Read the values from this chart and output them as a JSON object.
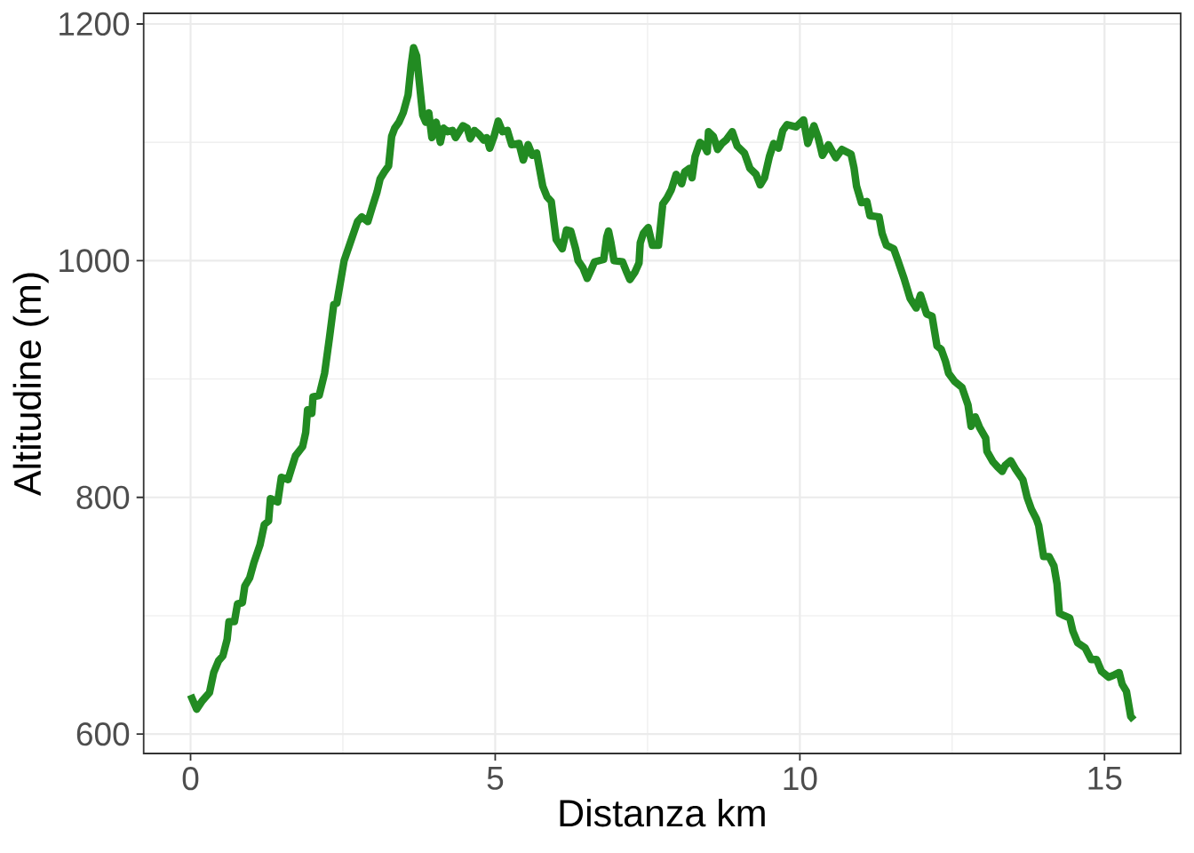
{
  "chart_data": {
    "type": "line",
    "xlabel": "Distanza km",
    "ylabel": "Altitudine (m)",
    "x": [
      0.0,
      0.1,
      0.19,
      0.31,
      0.38,
      0.46,
      0.53,
      0.6,
      0.63,
      0.72,
      0.77,
      0.85,
      0.89,
      0.97,
      1.04,
      1.14,
      1.21,
      1.28,
      1.31,
      1.43,
      1.49,
      1.6,
      1.72,
      1.84,
      1.89,
      1.92,
      1.99,
      2.01,
      2.11,
      2.2,
      2.28,
      2.35,
      2.4,
      2.52,
      2.62,
      2.74,
      2.81,
      2.91,
      2.98,
      3.06,
      3.11,
      3.18,
      3.25,
      3.3,
      3.35,
      3.42,
      3.49,
      3.57,
      3.62,
      3.66,
      3.71,
      3.76,
      3.81,
      3.86,
      3.91,
      3.96,
      4.03,
      4.1,
      4.15,
      4.22,
      4.3,
      4.35,
      4.47,
      4.54,
      4.59,
      4.66,
      4.73,
      4.81,
      4.86,
      4.91,
      4.98,
      5.05,
      5.12,
      5.2,
      5.27,
      5.39,
      5.46,
      5.54,
      5.61,
      5.68,
      5.78,
      5.85,
      5.92,
      6.0,
      6.1,
      6.17,
      6.24,
      6.32,
      6.36,
      6.44,
      6.51,
      6.58,
      6.63,
      6.78,
      6.83,
      6.86,
      6.9,
      6.95,
      7.09,
      7.16,
      7.21,
      7.29,
      7.36,
      7.38,
      7.43,
      7.51,
      7.58,
      7.68,
      7.75,
      7.82,
      7.89,
      7.97,
      8.06,
      8.11,
      8.19,
      8.23,
      8.28,
      8.36,
      8.43,
      8.48,
      8.5,
      8.58,
      8.65,
      8.72,
      8.79,
      8.89,
      8.97,
      9.09,
      9.18,
      9.28,
      9.35,
      9.42,
      9.5,
      9.57,
      9.65,
      9.72,
      9.79,
      9.94,
      10.06,
      10.13,
      10.23,
      10.3,
      10.37,
      10.47,
      10.59,
      10.69,
      10.84,
      10.89,
      10.93,
      11.01,
      11.1,
      11.15,
      11.3,
      11.35,
      11.42,
      11.54,
      11.61,
      11.71,
      11.81,
      11.91,
      11.98,
      12.08,
      12.17,
      12.25,
      12.32,
      12.39,
      12.44,
      12.54,
      12.66,
      12.76,
      12.81,
      12.88,
      12.95,
      13.05,
      13.07,
      13.17,
      13.24,
      13.32,
      13.37,
      13.46,
      13.54,
      13.66,
      13.73,
      13.8,
      13.88,
      13.92,
      14.0,
      14.09,
      14.17,
      14.22,
      14.26,
      14.34,
      14.43,
      14.48,
      14.56,
      14.68,
      14.78,
      14.87,
      14.95,
      15.07,
      15.16,
      15.24,
      15.29,
      15.36,
      15.43,
      15.48
    ],
    "values": [
      633,
      621,
      628,
      635,
      652,
      662,
      666,
      680,
      695,
      695,
      710,
      711,
      725,
      732,
      745,
      760,
      777,
      780,
      799,
      796,
      817,
      815,
      835,
      843,
      855,
      874,
      871,
      885,
      886,
      905,
      935,
      963,
      964,
      1000,
      1015,
      1033,
      1037,
      1033,
      1045,
      1058,
      1069,
      1075,
      1080,
      1105,
      1112,
      1117,
      1125,
      1140,
      1165,
      1180,
      1173,
      1148,
      1123,
      1117,
      1125,
      1104,
      1117,
      1100,
      1112,
      1109,
      1110,
      1104,
      1114,
      1112,
      1103,
      1110,
      1107,
      1102,
      1104,
      1095,
      1105,
      1118,
      1109,
      1110,
      1098,
      1099,
      1085,
      1098,
      1089,
      1091,
      1063,
      1054,
      1050,
      1018,
      1010,
      1026,
      1025,
      1010,
      1000,
      994,
      985,
      993,
      999,
      1001,
      1020,
      1025,
      1015,
      1000,
      999,
      990,
      984,
      990,
      998,
      1015,
      1023,
      1028,
      1013,
      1013,
      1048,
      1053,
      1060,
      1073,
      1065,
      1075,
      1078,
      1070,
      1088,
      1100,
      1097,
      1092,
      1109,
      1105,
      1094,
      1099,
      1102,
      1109,
      1097,
      1091,
      1078,
      1073,
      1064,
      1070,
      1088,
      1099,
      1095,
      1110,
      1115,
      1113,
      1119,
      1099,
      1114,
      1104,
      1089,
      1098,
      1087,
      1094,
      1090,
      1078,
      1063,
      1049,
      1050,
      1038,
      1037,
      1023,
      1013,
      1010,
      1000,
      985,
      968,
      960,
      971,
      955,
      953,
      928,
      925,
      915,
      905,
      898,
      893,
      878,
      860,
      868,
      859,
      850,
      839,
      830,
      826,
      822,
      827,
      831,
      824,
      815,
      800,
      790,
      782,
      776,
      750,
      750,
      742,
      727,
      702,
      700,
      698,
      687,
      677,
      673,
      663,
      663,
      653,
      648,
      650,
      652,
      642,
      636,
      615,
      612
    ],
    "color": "#228b22",
    "xlim": [
      -0.77,
      16.25
    ],
    "ylim": [
      583.6,
      1209
    ],
    "xticks": [
      0,
      5,
      10,
      15
    ],
    "yticks": [
      600,
      800,
      1000,
      1200
    ],
    "grid": true
  }
}
